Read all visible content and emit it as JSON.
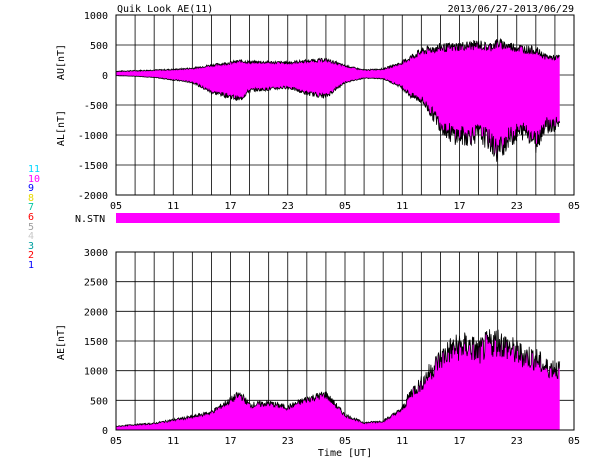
{
  "header": {
    "title": "Quik Look AE(11)",
    "date_range": "2013/06/27-2013/06/29"
  },
  "colors": {
    "fill": "#ff00ff",
    "line": "#000000",
    "grid": "#000000"
  },
  "station_scale": [
    {
      "label": "11",
      "color": "#00d8ff"
    },
    {
      "label": "10",
      "color": "#ff00ff"
    },
    {
      "label": "9",
      "color": "#0000ff"
    },
    {
      "label": "8",
      "color": "#e8d800"
    },
    {
      "label": "7",
      "color": "#00c8a0"
    },
    {
      "label": "6",
      "color": "#ff0000"
    },
    {
      "label": "5",
      "color": "#a0a0a0"
    },
    {
      "label": "4",
      "color": "#c8c8c8"
    },
    {
      "label": "3",
      "color": "#00a0a0"
    },
    {
      "label": "2",
      "color": "#ff0000"
    },
    {
      "label": "1",
      "color": "#0000ff"
    }
  ],
  "chart_data": [
    {
      "type": "area",
      "panel": "AU/AL",
      "ylabel_top": "AU[nT]",
      "ylabel_bottom": "AL[nT]",
      "xlabel": "",
      "ylim": [
        -2000,
        1000
      ],
      "yticks": [
        1000,
        500,
        0,
        -500,
        -1000,
        -1500,
        -2000
      ],
      "xlim_hours": [
        0,
        48
      ],
      "xtick_labels": [
        "05",
        "11",
        "17",
        "23",
        "05",
        "11",
        "17",
        "23",
        "05"
      ],
      "grid": true,
      "x": [
        0,
        2,
        4,
        6,
        8,
        10,
        12,
        13,
        14,
        16,
        18,
        20,
        22,
        24,
        26,
        28,
        30,
        31,
        32,
        33,
        34,
        35,
        36,
        37,
        38,
        39,
        40,
        41,
        42,
        43,
        44,
        45,
        46,
        46.5
      ],
      "series": [
        {
          "name": "AU",
          "values": [
            60,
            70,
            80,
            90,
            110,
            160,
            200,
            230,
            210,
            210,
            200,
            230,
            250,
            150,
            80,
            100,
            200,
            300,
            380,
            420,
            450,
            450,
            470,
            480,
            500,
            450,
            520,
            480,
            450,
            420,
            400,
            300,
            280,
            290
          ]
        },
        {
          "name": "AL",
          "values": [
            -10,
            -20,
            -40,
            -80,
            -120,
            -280,
            -350,
            -400,
            -250,
            -230,
            -200,
            -300,
            -350,
            -120,
            -50,
            -60,
            -200,
            -350,
            -400,
            -600,
            -800,
            -950,
            -1000,
            -1000,
            -950,
            -1050,
            -1250,
            -1050,
            -950,
            -900,
            -1100,
            -800,
            -850,
            -750
          ]
        }
      ]
    },
    {
      "type": "bar",
      "panel": "N.STN",
      "ylabel": "N.STN",
      "value": 11
    },
    {
      "type": "area",
      "panel": "AE",
      "ylabel": "AE[nT]",
      "xlabel": "Time [UT]",
      "ylim": [
        0,
        3000
      ],
      "yticks": [
        3000,
        2500,
        2000,
        1500,
        1000,
        500,
        0
      ],
      "xlim_hours": [
        0,
        48
      ],
      "xtick_labels": [
        "05",
        "11",
        "17",
        "23",
        "05",
        "11",
        "17",
        "23",
        "05"
      ],
      "grid": true,
      "x": [
        0,
        2,
        4,
        6,
        8,
        10,
        12,
        13,
        14,
        16,
        18,
        20,
        22,
        24,
        26,
        28,
        30,
        31,
        32,
        33,
        34,
        35,
        36,
        37,
        38,
        39,
        40,
        41,
        42,
        43,
        44,
        45,
        46,
        46.5
      ],
      "series": [
        {
          "name": "AE",
          "values": [
            60,
            90,
            110,
            170,
            220,
            300,
            500,
            600,
            420,
            450,
            380,
            520,
            600,
            250,
            120,
            150,
            350,
            650,
            780,
            1000,
            1200,
            1350,
            1400,
            1420,
            1300,
            1450,
            1500,
            1400,
            1300,
            1250,
            1200,
            1050,
            1050,
            1000
          ]
        }
      ]
    }
  ]
}
